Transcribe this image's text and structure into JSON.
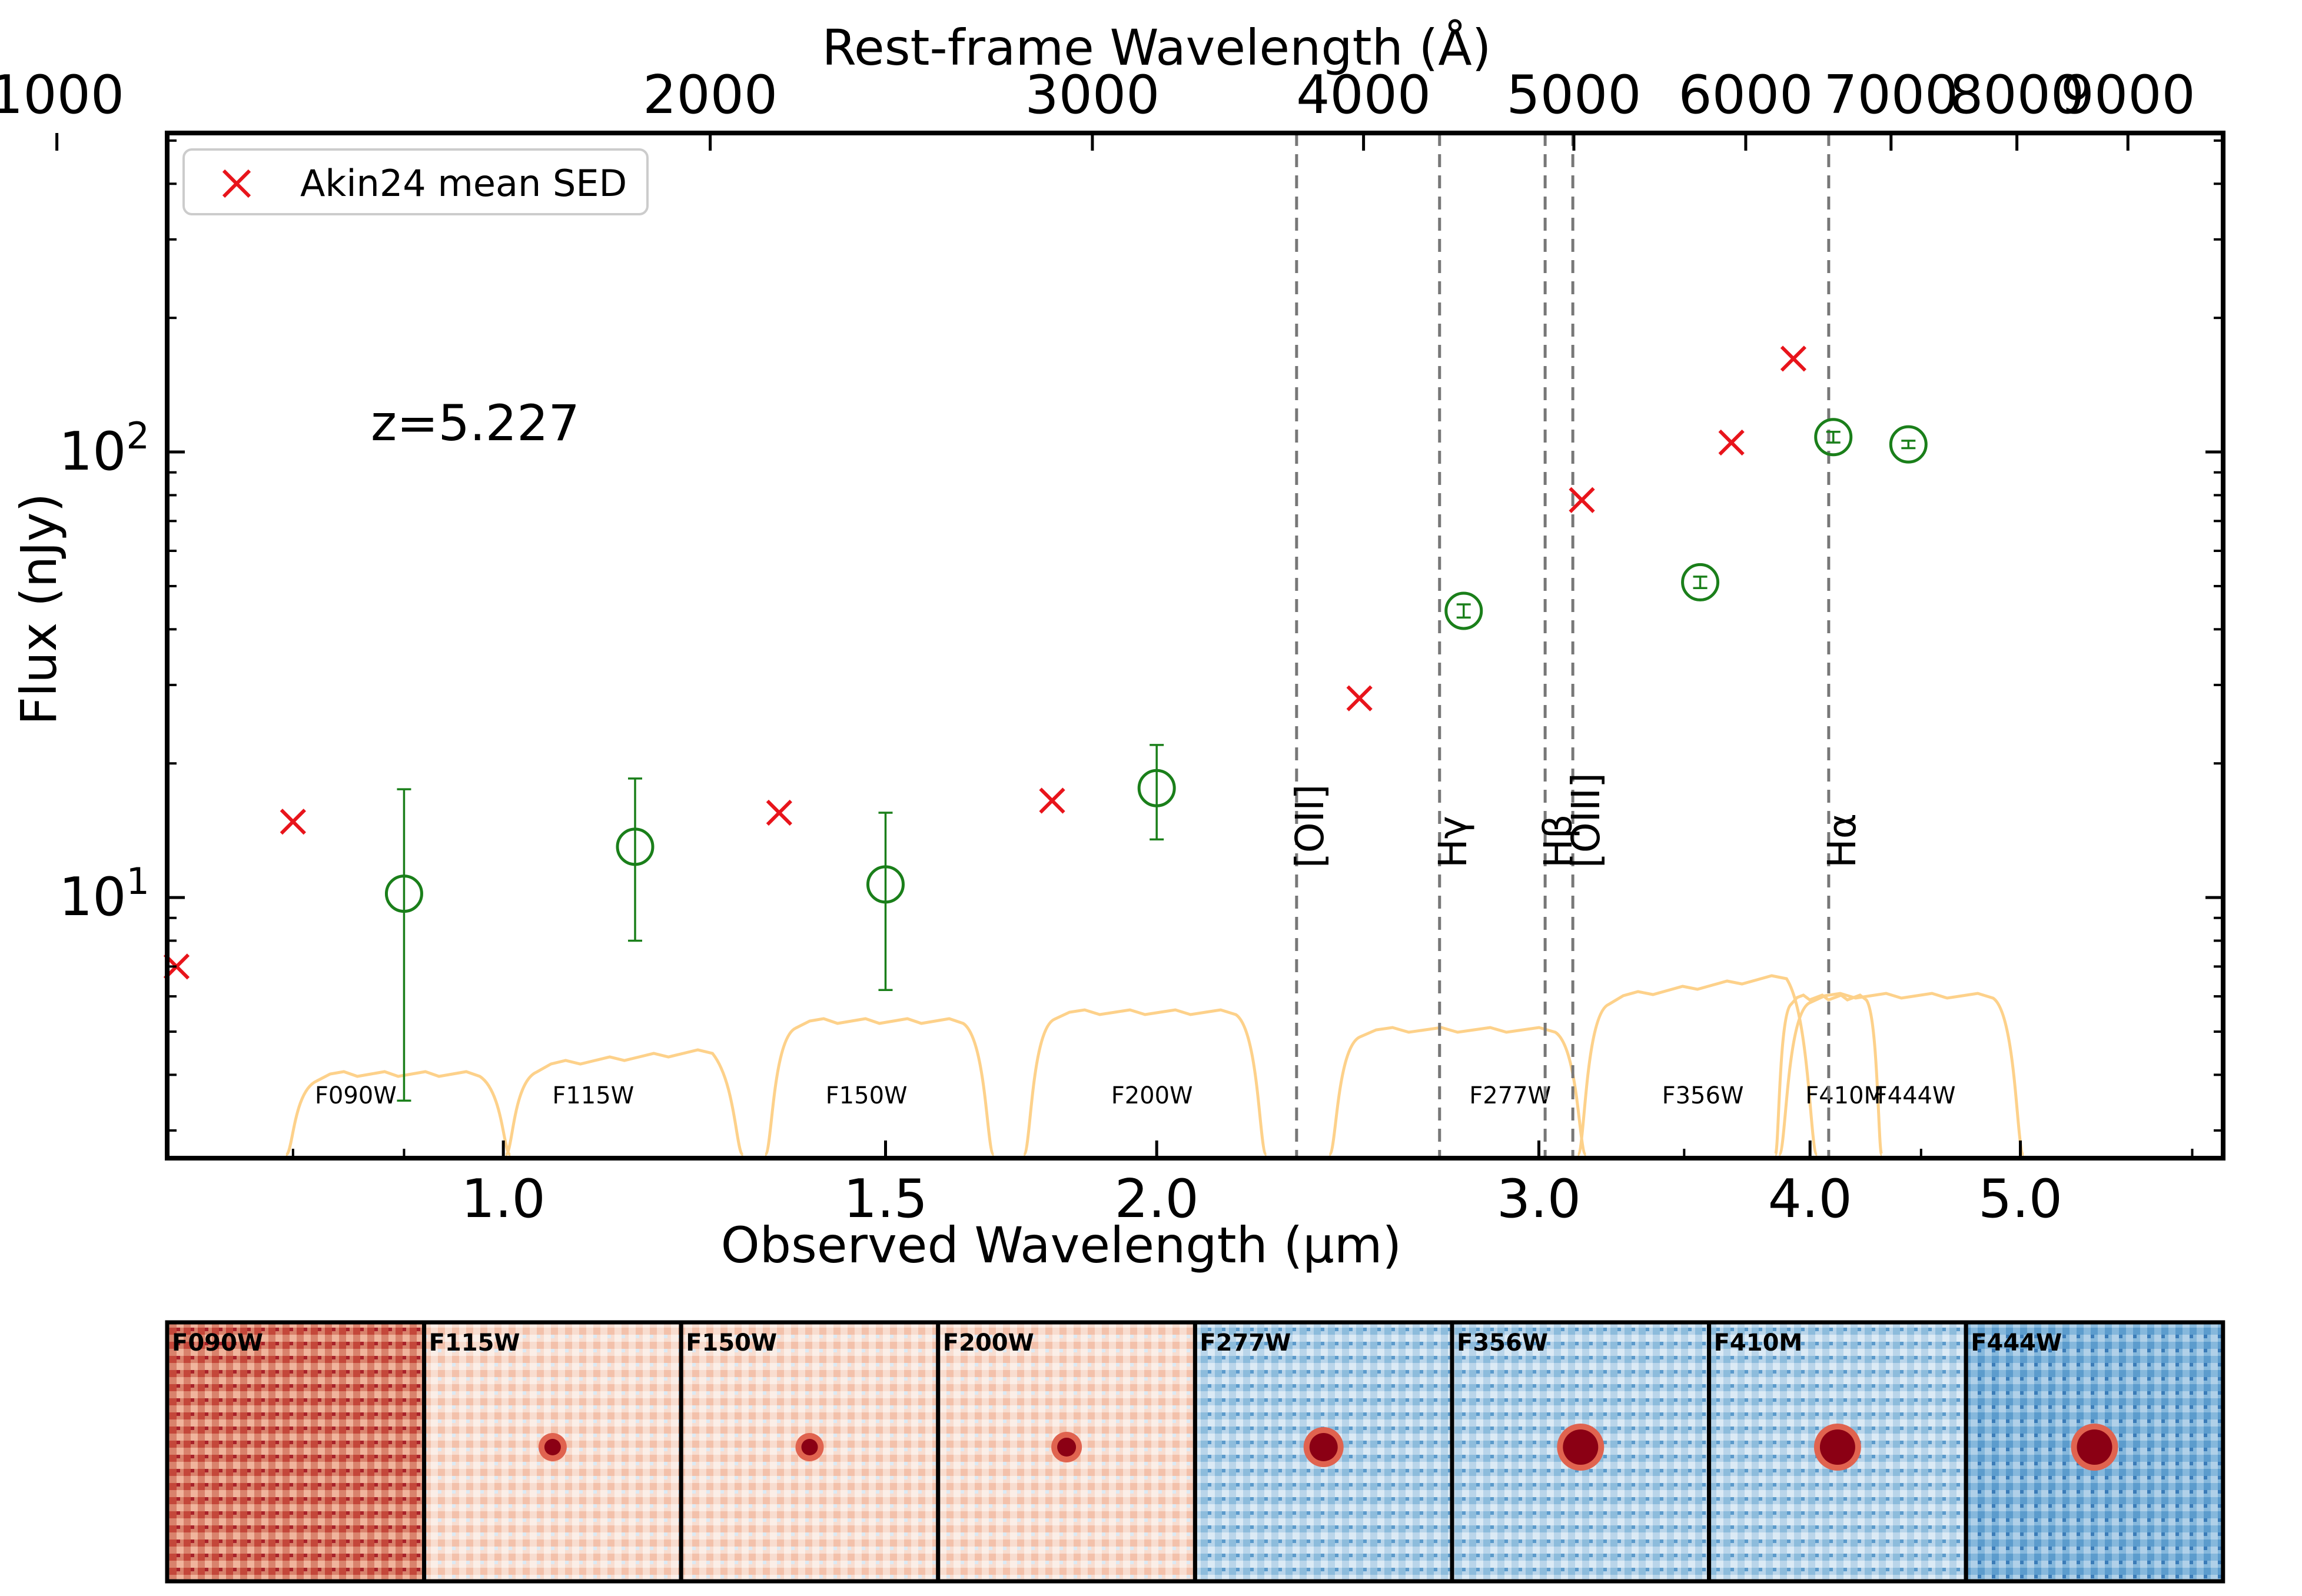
{
  "chart_data": {
    "type": "scatter",
    "redshift_label": "z=5.227",
    "xlabel": "Observed Wavelength (μm)",
    "xlabel_top": "Rest-frame Wavelength (Å)",
    "ylabel": "Flux (nJy)",
    "xscale": "log",
    "yscale": "log",
    "xlim": [
      0.7,
      6.2
    ],
    "ylim": [
      2.6,
      520
    ],
    "grid": false,
    "legend_position": "upper-left",
    "x_ticks": [
      {
        "value": 1.0,
        "label": "1.0"
      },
      {
        "value": 1.5,
        "label": "1.5"
      },
      {
        "value": 2.0,
        "label": "2.0"
      },
      {
        "value": 3.0,
        "label": "3.0"
      },
      {
        "value": 4.0,
        "label": "4.0"
      },
      {
        "value": 5.0,
        "label": "5.0"
      }
    ],
    "x_top_ticks": [
      {
        "value": 1000,
        "label": "1000"
      },
      {
        "value": 2000,
        "label": "2000"
      },
      {
        "value": 3000,
        "label": "3000"
      },
      {
        "value": 4000,
        "label": "4000"
      },
      {
        "value": 5000,
        "label": "5000"
      },
      {
        "value": 6000,
        "label": "6000"
      },
      {
        "value": 7000,
        "label": "7000"
      },
      {
        "value": 8000,
        "label": "8000"
      },
      {
        "value": 9000,
        "label": "9000"
      }
    ],
    "y_ticks": [
      {
        "value": 10,
        "base": "10",
        "exp": "1"
      },
      {
        "value": 100,
        "base": "10",
        "exp": "2"
      }
    ],
    "series": [
      {
        "name": "Akin24 mean SED",
        "marker": "x",
        "color": "#e8141b",
        "points": [
          {
            "x": 0.707,
            "y": 7.0
          },
          {
            "x": 0.8,
            "y": 14.8
          },
          {
            "x": 1.34,
            "y": 15.5
          },
          {
            "x": 1.79,
            "y": 16.5
          },
          {
            "x": 2.48,
            "y": 28.0
          },
          {
            "x": 3.14,
            "y": 78.0
          },
          {
            "x": 3.68,
            "y": 105.0
          },
          {
            "x": 3.93,
            "y": 162.0
          }
        ]
      },
      {
        "name": "",
        "marker": "open-circle",
        "color": "#1a7f1a",
        "points": [
          {
            "x": 0.9,
            "y": 10.2,
            "lo": 3.5,
            "hi": 17.5
          },
          {
            "x": 1.15,
            "y": 13.0,
            "lo": 8.0,
            "hi": 18.5
          },
          {
            "x": 1.5,
            "y": 10.7,
            "lo": 6.2,
            "hi": 15.5
          },
          {
            "x": 2.0,
            "y": 17.6,
            "lo": 13.5,
            "hi": 22.0
          },
          {
            "x": 2.77,
            "y": 44.0,
            "lo": 42.5,
            "hi": 45.5
          },
          {
            "x": 3.56,
            "y": 51.0,
            "lo": 49.5,
            "hi": 52.5
          },
          {
            "x": 4.1,
            "y": 108.0,
            "lo": 105.0,
            "hi": 111.0
          },
          {
            "x": 4.44,
            "y": 104.0,
            "lo": 102.0,
            "hi": 106.0
          }
        ]
      }
    ],
    "emission_lines": [
      {
        "label": "[OII]",
        "x": 2.32
      },
      {
        "label": "Hγ",
        "x": 2.7
      },
      {
        "label": "Hβ",
        "x": 3.02
      },
      {
        "label": "[OIII]",
        "x": 3.11
      },
      {
        "label": "Hα",
        "x": 4.08
      }
    ],
    "filters": [
      {
        "name": "F090W",
        "lo": 0.8,
        "hi": 1.0,
        "label_x": 0.855
      },
      {
        "name": "F115W",
        "lo": 1.01,
        "hi": 1.28,
        "label_x": 1.1
      },
      {
        "name": "F150W",
        "lo": 1.33,
        "hi": 1.67,
        "label_x": 1.47
      },
      {
        "name": "F200W",
        "lo": 1.75,
        "hi": 2.23,
        "label_x": 1.99
      },
      {
        "name": "F277W",
        "lo": 2.42,
        "hi": 3.13,
        "label_x": 2.91
      },
      {
        "name": "F356W",
        "lo": 3.15,
        "hi": 4.0,
        "label_x": 3.57
      },
      {
        "name": "F410M",
        "lo": 3.87,
        "hi": 4.3,
        "label_x": 4.15
      },
      {
        "name": "F444W",
        "lo": 3.9,
        "hi": 4.98,
        "label_x": 4.47
      }
    ],
    "filter_color": "#fdd18a",
    "cutouts": [
      "F090W",
      "F115W",
      "F150W",
      "F200W",
      "F277W",
      "F356W",
      "F410M",
      "F444W"
    ]
  }
}
